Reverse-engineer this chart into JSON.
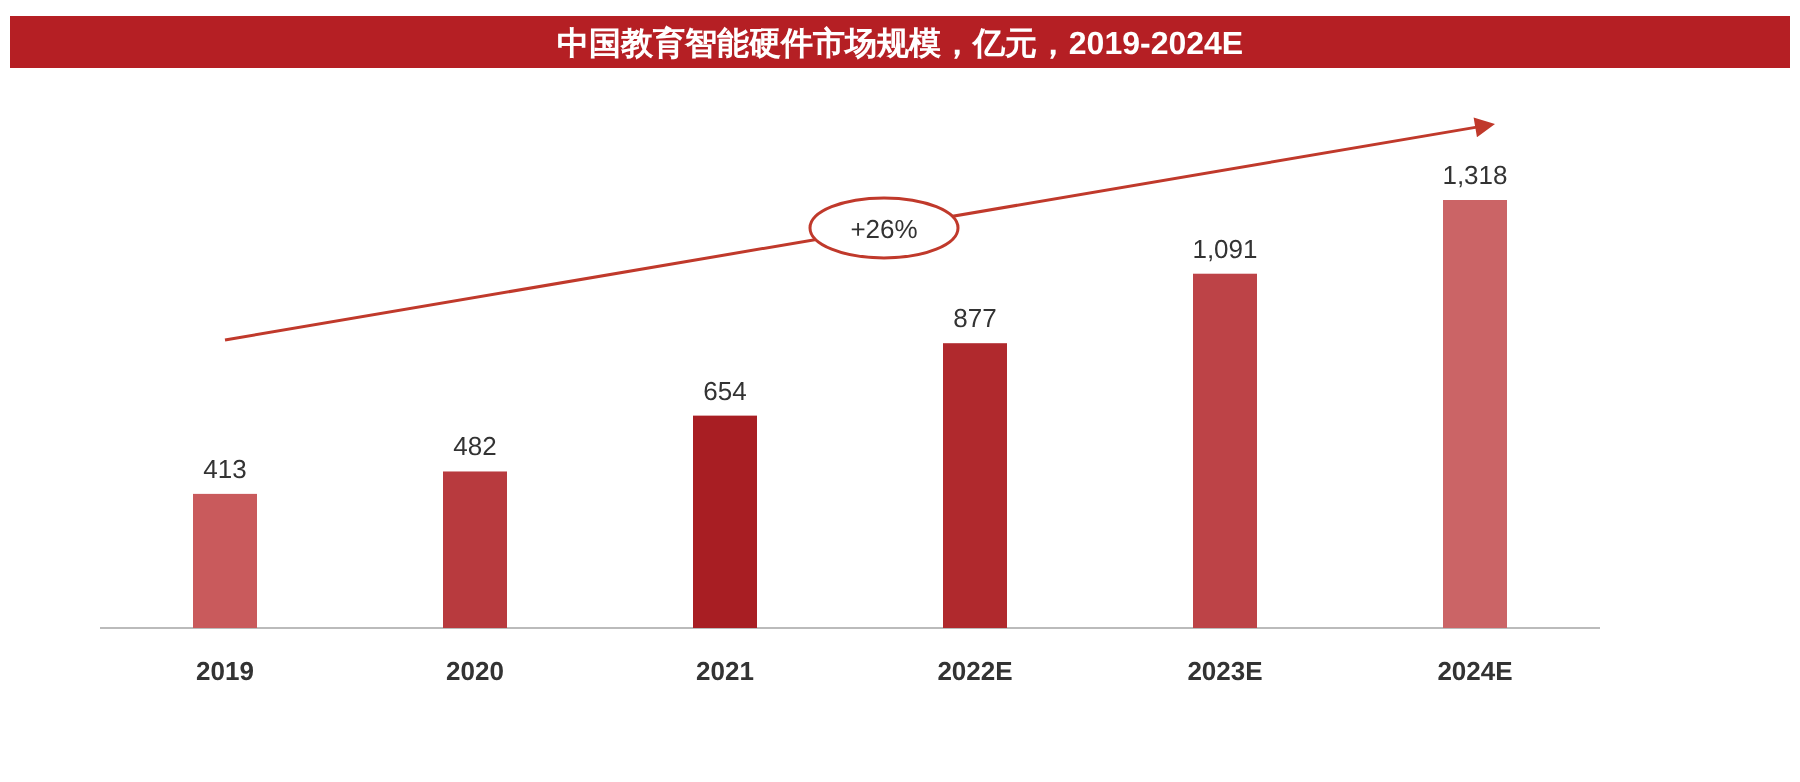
{
  "chart_data": {
    "type": "bar",
    "title": "中国教育智能硬件市场规模，亿元，2019-2024E",
    "categories": [
      "2019",
      "2020",
      "2021",
      "2022E",
      "2023E",
      "2024E"
    ],
    "values": [
      413,
      482,
      654,
      877,
      1091,
      1318
    ],
    "value_labels": [
      "413",
      "482",
      "654",
      "877",
      "1,091",
      "1,318"
    ],
    "colors": [
      "#c95a5c",
      "#b83a3e",
      "#a81e23",
      "#b0292d",
      "#bd4347",
      "#cb6466"
    ],
    "annotations": [
      "+26%"
    ]
  }
}
